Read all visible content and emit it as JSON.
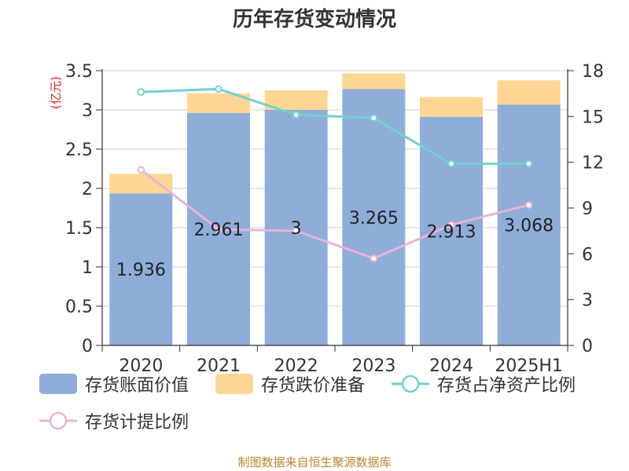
{
  "chart_data": {
    "type": "bar+line",
    "title": "历年存货变动情况",
    "categories": [
      "2020",
      "2021",
      "2022",
      "2023",
      "2024",
      "2025H1"
    ],
    "y_left": {
      "label": "(亿元)",
      "ticks": [
        "0",
        "0.5",
        "1",
        "1.5",
        "2",
        "2.5",
        "3",
        "3.5"
      ],
      "range": [
        0,
        3.5
      ]
    },
    "y_right": {
      "ticks": [
        "0",
        "3",
        "6",
        "9",
        "12",
        "15",
        "18"
      ],
      "range": [
        0,
        18
      ]
    },
    "series": [
      {
        "name": "存货账面价值",
        "kind": "stacked-bar",
        "color": "#8eadd9",
        "values": [
          1.936,
          2.961,
          3.0,
          3.265,
          2.913,
          3.068
        ],
        "labels": [
          "1.936",
          "2.961",
          "3",
          "3.265",
          "2.913",
          "3.068"
        ]
      },
      {
        "name": "存货跌价准备",
        "kind": "stacked-bar",
        "color": "#fdd694",
        "values": [
          0.25,
          0.25,
          0.25,
          0.2,
          0.25,
          0.31
        ]
      },
      {
        "name": "存货占净资产比例",
        "kind": "line",
        "axis": "right",
        "color": "#74d0d0",
        "values": [
          16.6,
          16.8,
          15.1,
          14.9,
          11.9,
          11.9
        ]
      },
      {
        "name": "存货计提比例",
        "kind": "line",
        "axis": "right",
        "color": "#e8b4d8",
        "values": [
          11.5,
          7.6,
          7.5,
          5.7,
          7.9,
          9.2
        ]
      }
    ],
    "grid": true,
    "legend_position": "bottom"
  },
  "footer": "制图数据来自恒生聚源数据库"
}
